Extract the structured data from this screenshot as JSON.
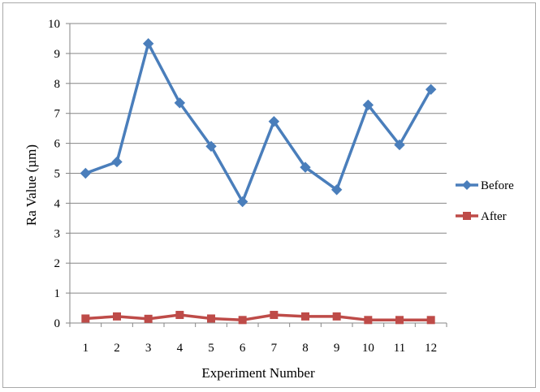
{
  "chart_data": {
    "type": "line",
    "title": "",
    "xlabel": "Experiment Number",
    "ylabel": "Ra Value (µm)",
    "categories": [
      "1",
      "2",
      "3",
      "4",
      "5",
      "6",
      "7",
      "8",
      "9",
      "10",
      "11",
      "12"
    ],
    "y_ticks": [
      "0",
      "1",
      "2",
      "3",
      "4",
      "5",
      "6",
      "7",
      "8",
      "9",
      "10"
    ],
    "ylim": [
      0,
      10
    ],
    "grid": "horizontal",
    "legend_position": "right",
    "series": [
      {
        "name": "Before",
        "color": "#4a7ebb",
        "marker": "diamond",
        "values": [
          5.0,
          5.38,
          9.33,
          7.35,
          5.9,
          4.05,
          6.73,
          5.2,
          4.45,
          7.28,
          5.95,
          7.8
        ]
      },
      {
        "name": "After",
        "color": "#be4b48",
        "marker": "square",
        "values": [
          0.15,
          0.22,
          0.14,
          0.27,
          0.15,
          0.1,
          0.27,
          0.22,
          0.22,
          0.1,
          0.1,
          0.1
        ]
      }
    ]
  }
}
